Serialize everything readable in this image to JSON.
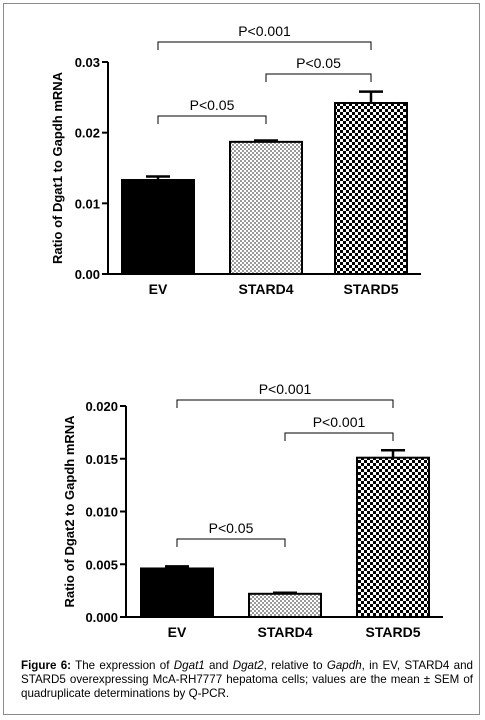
{
  "chart_data": [
    {
      "type": "bar",
      "ylabel": "Ratio of Dgat1 to Gapdh mRNA",
      "ylim": [
        0,
        0.03
      ],
      "yticks": [
        "0.00",
        "0.01",
        "0.02",
        "0.03"
      ],
      "ytick_values": [
        0,
        0.01,
        0.02,
        0.03
      ],
      "categories": [
        "EV",
        "STARD4",
        "STARD5"
      ],
      "values": [
        0.0133,
        0.0187,
        0.0242
      ],
      "errors": [
        0.0005,
        0.0002,
        0.0016
      ],
      "fills": [
        "solid",
        "fine-check",
        "coarse-check"
      ],
      "annotations": [
        {
          "text": "P<0.001",
          "from": 0,
          "to": 2
        },
        {
          "text": "P<0.05",
          "from": 1,
          "to": 2
        },
        {
          "text": "P<0.05",
          "from": 0,
          "to": 1
        }
      ]
    },
    {
      "type": "bar",
      "ylabel": "Ratio of Dgat2 to Gapdh mRNA",
      "ylim": [
        0,
        0.02
      ],
      "yticks": [
        "0.000",
        "0.005",
        "0.010",
        "0.015",
        "0.020"
      ],
      "ytick_values": [
        0,
        0.005,
        0.01,
        0.015,
        0.02
      ],
      "categories": [
        "EV",
        "STARD4",
        "STARD5"
      ],
      "values": [
        0.0046,
        0.0022,
        0.0151
      ],
      "errors": [
        0.0002,
        0.0001,
        0.0007
      ],
      "fills": [
        "solid",
        "fine-check",
        "coarse-check"
      ],
      "annotations": [
        {
          "text": "P<0.001",
          "from": 0,
          "to": 2
        },
        {
          "text": "P<0.001",
          "from": 1,
          "to": 2
        },
        {
          "text": "P<0.05",
          "from": 0,
          "to": 1
        }
      ]
    }
  ],
  "caption": {
    "label": "Figure 6:",
    "segments": [
      {
        "text": " The expression of ",
        "italic": false
      },
      {
        "text": "Dgat1",
        "italic": true
      },
      {
        "text": " and ",
        "italic": false
      },
      {
        "text": "Dgat2",
        "italic": true
      },
      {
        "text": ", relative to ",
        "italic": false
      },
      {
        "text": "Gapdh",
        "italic": true
      },
      {
        "text": ", in EV, STARD4 and STARD5 overexpressing McA-RH7777 hepatoma cells; values are the mean ± SEM of quadruplicate determinations by Q-PCR.",
        "italic": false
      }
    ]
  }
}
